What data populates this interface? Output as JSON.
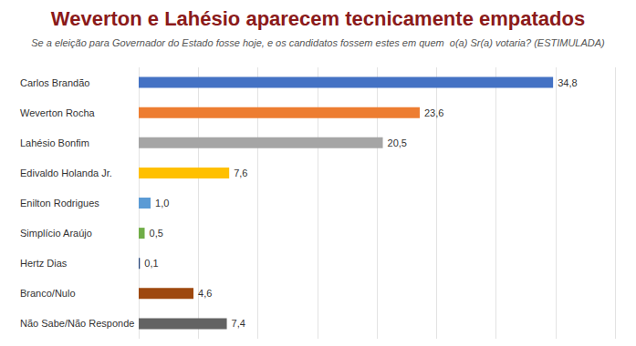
{
  "chart_data": {
    "type": "bar",
    "orientation": "horizontal",
    "title": "Weverton e Lahésio aparecem tecnicamente empatados",
    "subtitle": "Se a eleição para Governador do Estado fosse hoje, e os candidatos fossem estes em quem  o(a) Sr(a) votaria? (ESTIMULADA)",
    "categories": [
      "Carlos Brandão",
      "Weverton Rocha",
      "Lahésio Bonfim",
      "Edivaldo Holanda Jr.",
      "Enilton Rodrigues",
      "Simplício Araújo",
      "Hertz Dias",
      "Branco/Nulo",
      "Não Sabe/Não Responde"
    ],
    "values": [
      34.8,
      23.6,
      20.5,
      7.6,
      1.0,
      0.5,
      0.1,
      4.6,
      7.4
    ],
    "value_labels": [
      "34,8",
      "23,6",
      "20,5",
      "7,6",
      "1,0",
      "0,5",
      "0,1",
      "4,6",
      "7,4"
    ],
    "colors": [
      "#4472c4",
      "#ed7d31",
      "#a5a5a5",
      "#ffc000",
      "#5b9bd5",
      "#70ad47",
      "#264478",
      "#9e480e",
      "#636363"
    ],
    "xlim": [
      0,
      40
    ],
    "xticks": [
      0,
      5,
      10,
      15,
      20,
      25,
      30,
      35,
      40
    ],
    "grid": true,
    "data_labels": true,
    "tick_labels": "y"
  }
}
